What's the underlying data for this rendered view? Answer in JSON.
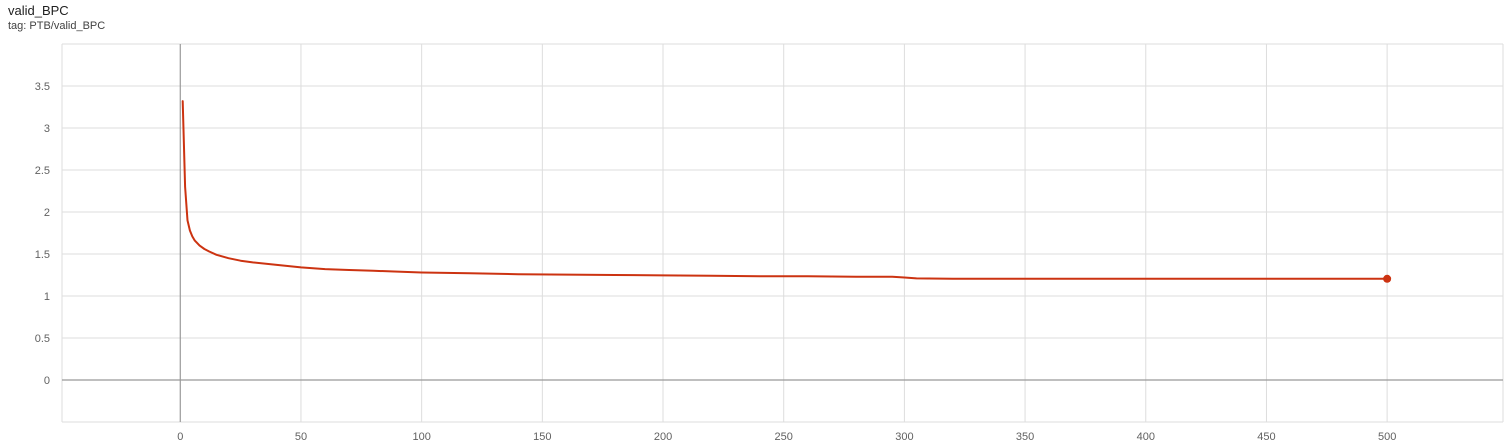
{
  "header": {
    "title": "valid_BPC",
    "tag": "tag: PTB/valid_BPC"
  },
  "colors": {
    "series": "#cc3311",
    "grid": "#dddddd",
    "axis": "#999999"
  },
  "chart_data": {
    "type": "line",
    "title": "valid_BPC",
    "xlabel": "",
    "ylabel": "",
    "xlim": [
      -49,
      548
    ],
    "ylim": [
      -0.5,
      4.0
    ],
    "grid": true,
    "xticks": [
      0,
      50,
      100,
      150,
      200,
      250,
      300,
      350,
      400,
      450,
      500
    ],
    "yticks": [
      0,
      0.5,
      1,
      1.5,
      2,
      2.5,
      3,
      3.5
    ],
    "xtick_labels": [
      "0",
      "50",
      "100",
      "150",
      "200",
      "250",
      "300",
      "350",
      "400",
      "450",
      "500"
    ],
    "ytick_labels": [
      "0",
      "0.5",
      "1",
      "1.5",
      "2",
      "2.5",
      "3",
      "3.5"
    ],
    "series": [
      {
        "x": [
          1,
          2,
          3,
          4,
          5,
          6,
          8,
          10,
          12,
          15,
          20,
          25,
          30,
          40,
          50,
          60,
          70,
          80,
          90,
          100,
          120,
          140,
          160,
          180,
          200,
          220,
          240,
          260,
          280,
          295,
          300,
          305,
          320,
          340,
          360,
          380,
          400,
          420,
          440,
          460,
          480,
          500
        ],
        "y": [
          3.32,
          2.3,
          1.9,
          1.78,
          1.71,
          1.66,
          1.6,
          1.56,
          1.53,
          1.49,
          1.45,
          1.42,
          1.4,
          1.37,
          1.34,
          1.32,
          1.31,
          1.3,
          1.29,
          1.28,
          1.27,
          1.26,
          1.255,
          1.25,
          1.245,
          1.24,
          1.235,
          1.235,
          1.23,
          1.23,
          1.22,
          1.21,
          1.205,
          1.205,
          1.205,
          1.205,
          1.205,
          1.205,
          1.205,
          1.205,
          1.205,
          1.205
        ]
      }
    ]
  }
}
